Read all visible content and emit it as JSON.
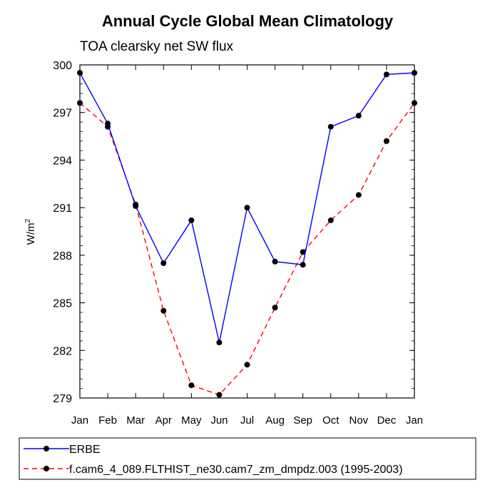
{
  "chart_data": {
    "type": "line",
    "title": "Annual Cycle Global Mean Climatology",
    "subtitle": "TOA clearsky net SW flux",
    "ylabel": "W/m",
    "ylabel_superscript": "2",
    "xlabel": "",
    "categories": [
      "Jan",
      "Feb",
      "Mar",
      "Apr",
      "May",
      "Jun",
      "Jul",
      "Aug",
      "Sep",
      "Oct",
      "Nov",
      "Dec",
      "Jan"
    ],
    "ylim": [
      279,
      300
    ],
    "yticks": [
      279,
      282,
      285,
      288,
      291,
      294,
      297,
      300
    ],
    "series": [
      {
        "name": "ERBE",
        "color": "#0000ff",
        "dash": "solid",
        "values": [
          299.5,
          296.3,
          291.1,
          287.5,
          290.2,
          282.5,
          291.0,
          287.6,
          287.4,
          296.1,
          296.8,
          299.4,
          299.5
        ]
      },
      {
        "name": "f.cam6_4_089.FLTHIST_ne30.cam7_zm_dmpdz.003 (1995-2003)",
        "color": "#ff0000",
        "dash": "dashed",
        "values": [
          297.6,
          296.1,
          291.2,
          284.5,
          279.8,
          279.2,
          281.1,
          284.7,
          288.2,
          290.2,
          291.8,
          295.2,
          297.6
        ]
      }
    ],
    "legend_position": "bottom-left"
  }
}
